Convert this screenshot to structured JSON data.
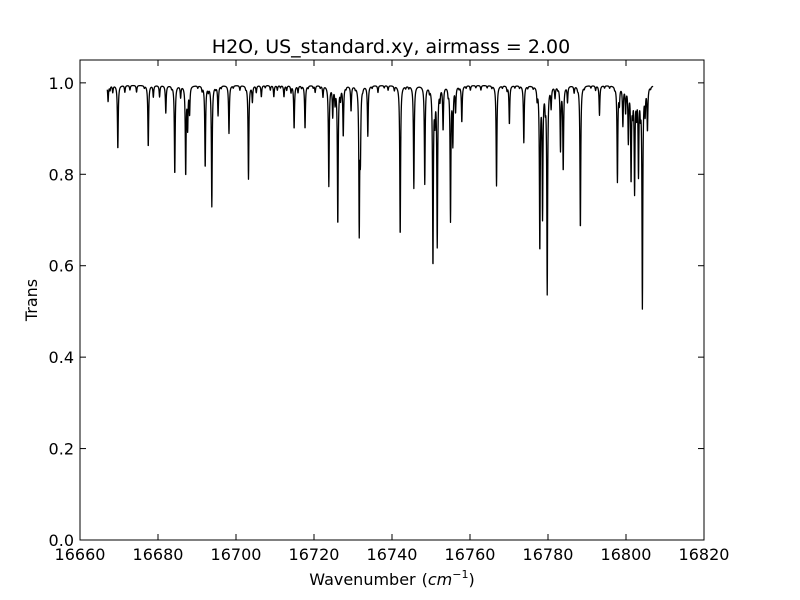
{
  "chart_data": {
    "type": "line",
    "title": "H2O, US_standard.xy, airmass = 2.00",
    "xlabel": "Wavenumber",
    "xlabel_unit_base": "cm",
    "xlabel_unit_exp": "−1",
    "ylabel": "Trans",
    "xlim": [
      16660,
      16820
    ],
    "ylim": [
      0.0,
      1.05
    ],
    "x_ticks": [
      "16660",
      "16680",
      "16700",
      "16720",
      "16740",
      "16760",
      "16780",
      "16800",
      "16820"
    ],
    "y_ticks": [
      "0.0",
      "0.2",
      "0.4",
      "0.6",
      "0.8",
      "1.0"
    ],
    "x_tick_values": [
      16660,
      16680,
      16700,
      16720,
      16740,
      16760,
      16780,
      16800,
      16820
    ],
    "y_tick_values": [
      0.0,
      0.2,
      0.4,
      0.6,
      0.8,
      1.0
    ],
    "grid": false,
    "line_color": "#000000",
    "series": [
      {
        "x_range": [
          16667.0,
          16807.0
        ],
        "baseline": 0.995,
        "absorption_lines": [
          [
            16667.2,
            0.96
          ],
          [
            16667.7,
            0.985
          ],
          [
            16668.4,
            0.98
          ],
          [
            16669.7,
            0.855
          ],
          [
            16671.5,
            0.98
          ],
          [
            16672.8,
            0.985
          ],
          [
            16674.5,
            0.98
          ],
          [
            16676.5,
            0.99
          ],
          [
            16677.5,
            0.86
          ],
          [
            16678.8,
            0.97
          ],
          [
            16680.4,
            0.97
          ],
          [
            16682.0,
            0.935
          ],
          [
            16683.5,
            0.99
          ],
          [
            16684.3,
            0.8
          ],
          [
            16685.8,
            0.97
          ],
          [
            16687.1,
            0.8
          ],
          [
            16687.6,
            0.905
          ],
          [
            16688.1,
            0.935
          ],
          [
            16690.2,
            0.99
          ],
          [
            16691.3,
            0.985
          ],
          [
            16692.1,
            0.815
          ],
          [
            16692.9,
            0.985
          ],
          [
            16693.8,
            0.73
          ],
          [
            16694.8,
            0.99
          ],
          [
            16695.4,
            0.93
          ],
          [
            16696.2,
            0.99
          ],
          [
            16698.2,
            0.89
          ],
          [
            16699.3,
            0.99
          ],
          [
            16701.0,
            0.985
          ],
          [
            16702.5,
            0.99
          ],
          [
            16703.2,
            0.79
          ],
          [
            16704.2,
            0.96
          ],
          [
            16705.2,
            0.98
          ],
          [
            16706.5,
            0.97
          ],
          [
            16707.5,
            0.99
          ],
          [
            16708.8,
            0.985
          ],
          [
            16709.7,
            0.97
          ],
          [
            16710.6,
            0.985
          ],
          [
            16711.4,
            0.99
          ],
          [
            16712.3,
            0.97
          ],
          [
            16713.0,
            0.985
          ],
          [
            16714.1,
            0.98
          ],
          [
            16714.9,
            0.9
          ],
          [
            16715.9,
            0.98
          ],
          [
            16716.8,
            0.99
          ],
          [
            16717.7,
            0.9
          ],
          [
            16718.5,
            0.99
          ],
          [
            16719.8,
            0.99
          ],
          [
            16720.3,
            0.98
          ],
          [
            16721.6,
            0.99
          ],
          [
            16722.3,
            0.97
          ],
          [
            16723.8,
            0.775
          ],
          [
            16724.8,
            0.93
          ],
          [
            16725.4,
            0.96
          ],
          [
            16726.1,
            0.69
          ],
          [
            16726.8,
            0.97
          ],
          [
            16727.5,
            0.885
          ],
          [
            16728.2,
            0.99
          ],
          [
            16729.5,
            0.94
          ],
          [
            16730.6,
            0.99
          ],
          [
            16731.6,
            0.675
          ],
          [
            16731.9,
            0.85
          ],
          [
            16732.5,
            0.99
          ],
          [
            16733.8,
            0.885
          ],
          [
            16734.9,
            0.99
          ],
          [
            16736.4,
            0.98
          ],
          [
            16738.0,
            0.99
          ],
          [
            16739.0,
            0.985
          ],
          [
            16740.6,
            0.985
          ],
          [
            16742.1,
            0.665
          ],
          [
            16743.5,
            0.99
          ],
          [
            16744.3,
            0.99
          ],
          [
            16745.6,
            0.77
          ],
          [
            16746.8,
            0.995
          ],
          [
            16748.4,
            0.78
          ],
          [
            16749.6,
            0.985
          ],
          [
            16750.5,
            0.6
          ],
          [
            16751.0,
            0.93
          ],
          [
            16751.6,
            0.645
          ],
          [
            16752.3,
            0.97
          ],
          [
            16753.1,
            0.9
          ],
          [
            16754.4,
            0.98
          ],
          [
            16755.0,
            0.7
          ],
          [
            16755.6,
            0.87
          ],
          [
            16756.3,
            0.94
          ],
          [
            16757.2,
            0.99
          ],
          [
            16757.9,
            0.915
          ],
          [
            16759.0,
            0.99
          ],
          [
            16760.1,
            0.985
          ],
          [
            16761.5,
            0.99
          ],
          [
            16762.8,
            0.985
          ],
          [
            16764.4,
            0.99
          ],
          [
            16765.6,
            0.99
          ],
          [
            16766.8,
            0.775
          ],
          [
            16768.3,
            0.99
          ],
          [
            16769.5,
            0.985
          ],
          [
            16770.1,
            0.91
          ],
          [
            16771.5,
            0.99
          ],
          [
            16772.7,
            0.99
          ],
          [
            16773.8,
            0.87
          ],
          [
            16774.8,
            0.99
          ],
          [
            16776.2,
            0.99
          ],
          [
            16777.2,
            0.97
          ],
          [
            16777.9,
            0.635
          ],
          [
            16778.6,
            0.71
          ],
          [
            16779.3,
            0.96
          ],
          [
            16779.8,
            0.54
          ],
          [
            16780.8,
            0.95
          ],
          [
            16781.8,
            0.97
          ],
          [
            16782.5,
            0.99
          ],
          [
            16783.2,
            0.855
          ],
          [
            16783.9,
            0.81
          ],
          [
            16785.0,
            0.96
          ],
          [
            16786.7,
            0.98
          ],
          [
            16787.6,
            0.99
          ],
          [
            16788.3,
            0.68
          ],
          [
            16789.3,
            0.99
          ],
          [
            16791.0,
            0.99
          ],
          [
            16792.2,
            0.985
          ],
          [
            16793.2,
            0.93
          ],
          [
            16794.5,
            0.99
          ],
          [
            16795.8,
            0.99
          ],
          [
            16797.1,
            0.99
          ],
          [
            16797.8,
            0.785
          ],
          [
            16798.3,
            0.96
          ],
          [
            16799.2,
            0.91
          ],
          [
            16799.9,
            0.94
          ],
          [
            16800.6,
            0.875
          ],
          [
            16801.3,
            0.79
          ],
          [
            16801.7,
            0.95
          ],
          [
            16802.2,
            0.765
          ],
          [
            16802.7,
            0.94
          ],
          [
            16803.2,
            0.805
          ],
          [
            16803.7,
            0.95
          ],
          [
            16804.2,
            0.51
          ],
          [
            16804.9,
            0.94
          ],
          [
            16805.5,
            0.9
          ],
          [
            16806.3,
            0.99
          ]
        ]
      }
    ]
  }
}
